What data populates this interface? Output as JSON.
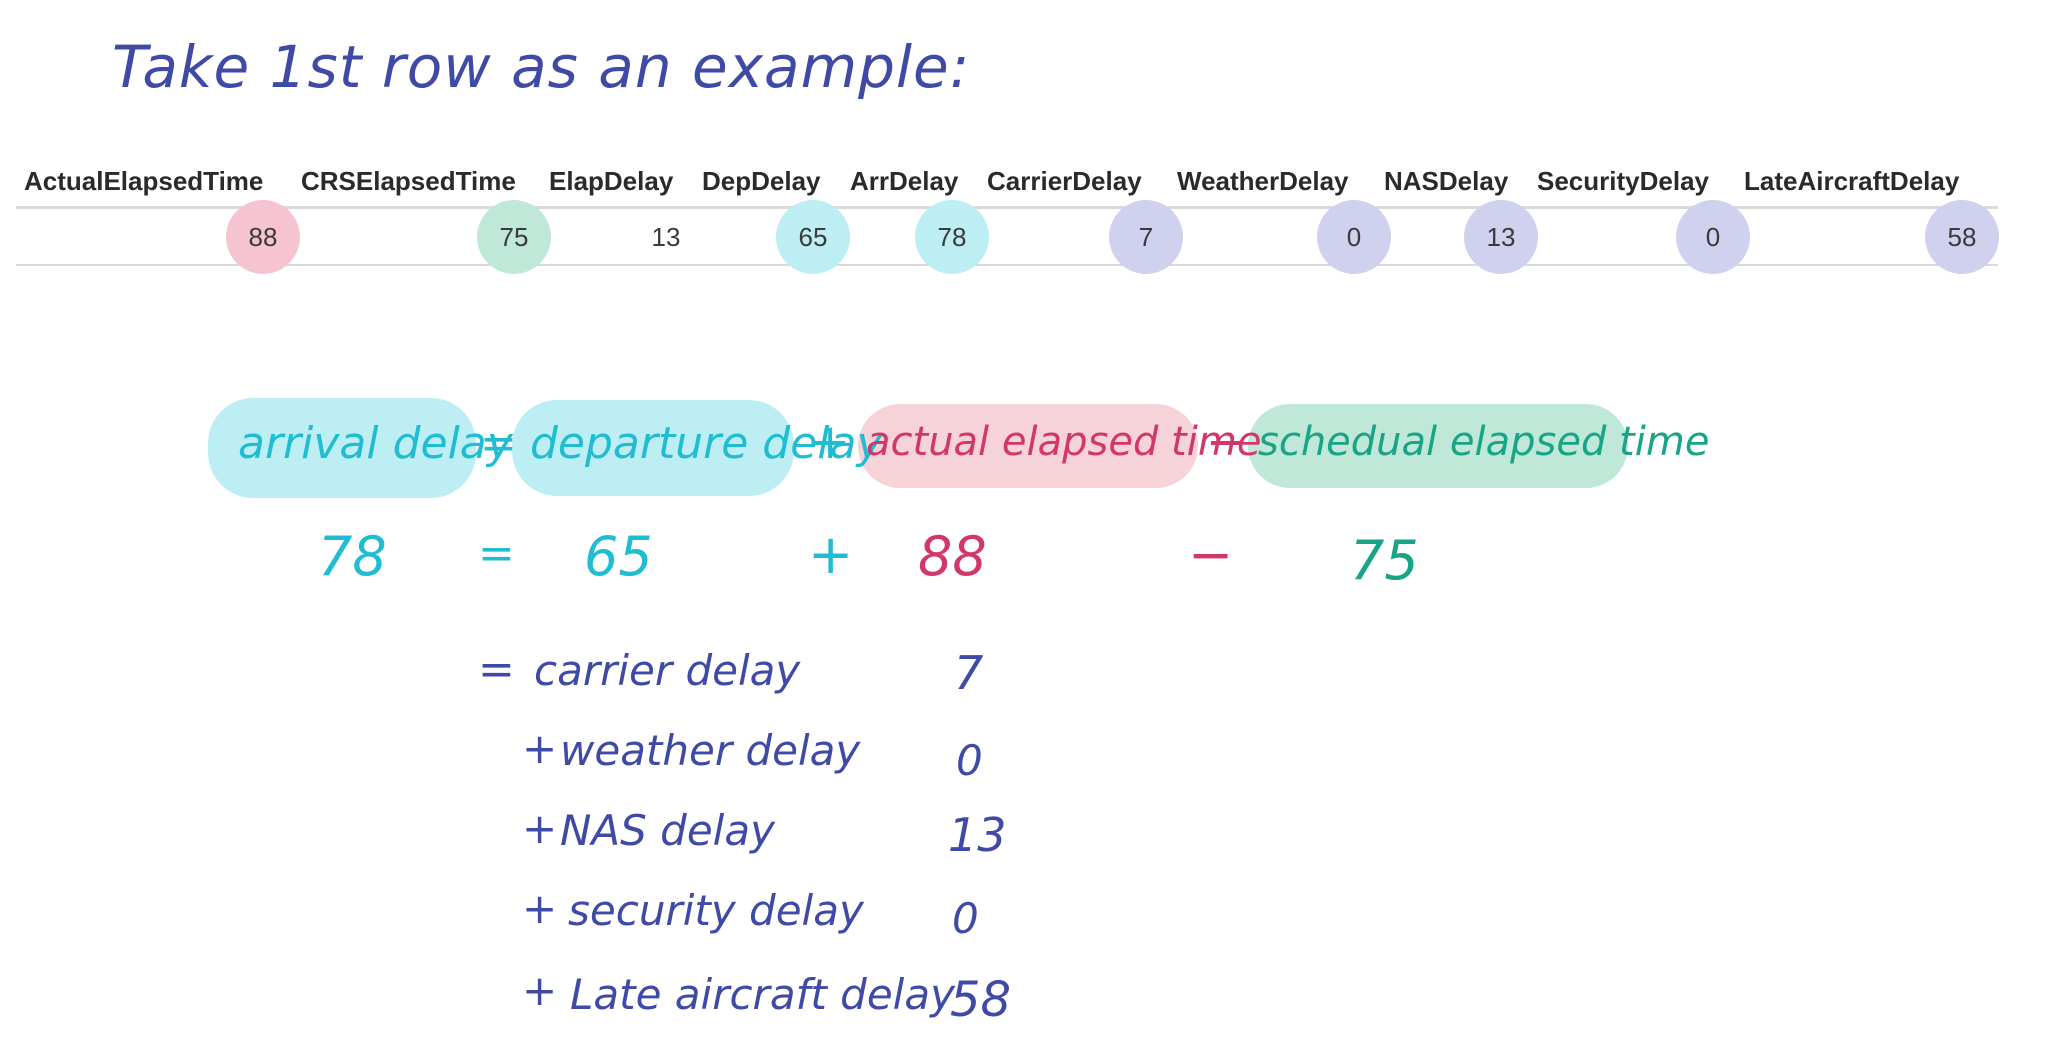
{
  "title": "Take 1st row as an example:",
  "table": {
    "headers": [
      "ActualElapsedTime",
      "CRSElapsedTime",
      "ElapDelay",
      "DepDelay",
      "ArrDelay",
      "CarrierDelay",
      "WeatherDelay",
      "NASDelay",
      "SecurityDelay",
      "LateAircraftDelay"
    ],
    "row": [
      "88",
      "75",
      "13",
      "65",
      "78",
      "7",
      "0",
      "13",
      "0",
      "58"
    ],
    "highlight_colors": {
      "pink": "#f6c3d1",
      "green": "#bfe8d8",
      "cyan": "#bdeef3",
      "purple": "#cfd1ee"
    }
  },
  "equation": {
    "arrival": "arrival delay",
    "equals": "=",
    "departure": "departure delay",
    "plus": "+",
    "actual": "actual elapsed time",
    "minus": "−",
    "scheduled": "schedual elapsed time",
    "arrival_value": "78",
    "departure_value": "65",
    "actual_value": "88",
    "scheduled_value": "75"
  },
  "breakdown": [
    {
      "prefix": "=",
      "label": "carrier delay",
      "value": "7"
    },
    {
      "prefix": "+",
      "label": "weather delay",
      "value": "0"
    },
    {
      "prefix": "+",
      "label": "NAS delay",
      "value": "13"
    },
    {
      "prefix": "+",
      "label": "security delay",
      "value": "0"
    },
    {
      "prefix": "+",
      "label": "Late aircraft delay",
      "value": "58"
    }
  ],
  "colors": {
    "navy": "#3f4aa6",
    "blue": "#1fbcd2",
    "pink": "#d1376a",
    "green": "#1aa487"
  }
}
